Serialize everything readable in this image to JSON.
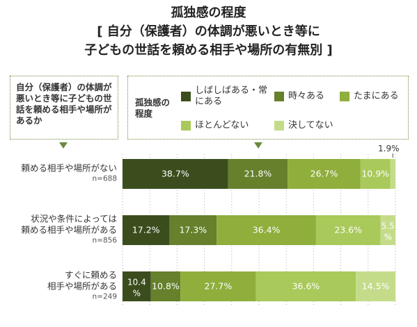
{
  "title_lines": [
    "孤独感の程度",
    "[ 自分（保護者）の体調が悪いとき等に",
    "子どもの世話を頼める相手や場所の有無別 ]"
  ],
  "left_box_label": "自分（保護者）の体調が悪いとき等に子どもの世話を頼める相手や場所があるか",
  "legend_title": "孤独感の程度",
  "colors": [
    "#3b4d1d",
    "#66802c",
    "#8fae3c",
    "#a9c95a",
    "#c4dc8a"
  ],
  "chart_data": {
    "type": "bar",
    "orientation": "horizontal-stacked",
    "categories": [
      {
        "label": [
          "頼める相手や場所がない"
        ],
        "n": "n=688"
      },
      {
        "label": [
          "状況や条件によっては",
          "頼める相手や場所がある"
        ],
        "n": "n=856"
      },
      {
        "label": [
          "すぐに頼める",
          "相手や場所がある"
        ],
        "n": "n=249"
      }
    ],
    "series": [
      {
        "name": "しばしばある・常にある",
        "values": [
          38.7,
          17.2,
          10.4
        ],
        "labels": [
          "38.7%",
          "17.2%",
          "10.4%"
        ]
      },
      {
        "name": "時々ある",
        "values": [
          21.8,
          17.3,
          10.8
        ],
        "labels": [
          "21.8%",
          "17.3%",
          "10.8%"
        ]
      },
      {
        "name": "たまにある",
        "values": [
          26.7,
          36.4,
          27.7
        ],
        "labels": [
          "26.7%",
          "36.4%",
          "27.7%"
        ]
      },
      {
        "name": "ほとんどない",
        "values": [
          10.9,
          23.6,
          36.6
        ],
        "labels": [
          "10.9%",
          "23.6%",
          "36.6%"
        ]
      },
      {
        "name": "決してない",
        "values": [
          1.9,
          5.5,
          14.5
        ],
        "labels": [
          "1.9%",
          "5.5%",
          "14.5%"
        ]
      }
    ],
    "xlim": [
      0,
      100
    ],
    "grid": true
  }
}
